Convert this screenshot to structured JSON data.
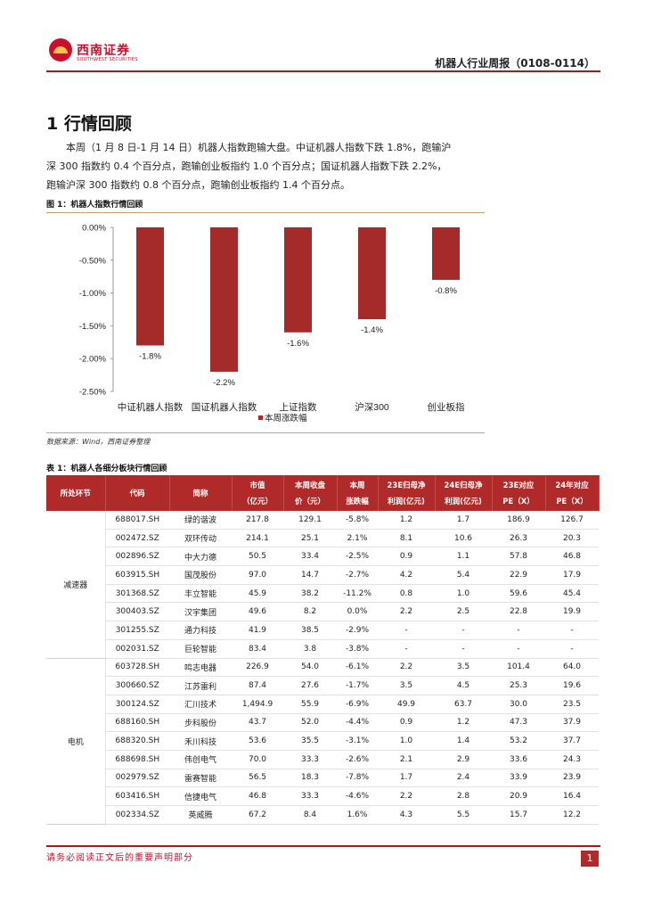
{
  "header": {
    "logo_text": "西南证券",
    "logo_sub": "SOUTHWEST SECURITIES",
    "report_title": "机器人行业周报（0108-0114）"
  },
  "section": {
    "title": "1 行情回顾",
    "paragraph": [
      "　　本周（1 月 8 日-1 月 14 日）机器人指数跑输大盘。中证机器人指数下跌 1.8%，跑输沪",
      "深 300 指数约 0.4 个百分点，跑输创业板指约 1.0 个百分点；国证机器人指数下跌 2.2%，",
      "跑输沪深 300 指数约 0.8 个百分点，跑输创业板指约 1.4 个百分点。"
    ]
  },
  "figure": {
    "title": "图 1：机器人指数行情回顾",
    "source": "数据来源：Wind，西南证券整理"
  },
  "chart_data": {
    "type": "bar",
    "categories": [
      "中证机器人指数",
      "国证机器人指数",
      "上证指数",
      "沪深300",
      "创业板指"
    ],
    "series": [
      {
        "name": "本周涨跌幅",
        "values": [
          -1.8,
          -2.2,
          -1.6,
          -1.4,
          -0.8
        ]
      }
    ],
    "data_labels": [
      "-1.8%",
      "-2.2%",
      "-1.6%",
      "-1.4%",
      "-0.8%"
    ],
    "y_ticks": [
      "0.00%",
      "-0.50%",
      "-1.00%",
      "-1.50%",
      "-2.00%",
      "-2.50%"
    ],
    "ylim": [
      -2.5,
      0
    ],
    "legend_position": "bottom",
    "bar_color": "#a52a2a"
  },
  "table": {
    "title": "表 1：机器人各细分板块行情回顾",
    "headers": [
      [
        "所处环节",
        ""
      ],
      [
        "代码",
        ""
      ],
      [
        "简称",
        ""
      ],
      [
        "市值",
        "（亿元）"
      ],
      [
        "本周收盘",
        "价（元）"
      ],
      [
        "本周",
        "涨跌幅"
      ],
      [
        "23E归母净",
        "利润(亿元)"
      ],
      [
        "24E归母净",
        "利润(亿元)"
      ],
      [
        "23E对应",
        "PE（X）"
      ],
      [
        "24年对应",
        "PE（X）"
      ]
    ],
    "groups": [
      {
        "segment": "减速器",
        "rows": [
          [
            "688017.SH",
            "绿的谐波",
            "217.8",
            "129.1",
            "-5.8%",
            "1.2",
            "1.7",
            "186.9",
            "126.7"
          ],
          [
            "002472.SZ",
            "双环传动",
            "214.1",
            "25.1",
            "2.1%",
            "8.1",
            "10.6",
            "26.3",
            "20.3"
          ],
          [
            "002896.SZ",
            "中大力德",
            "50.5",
            "33.4",
            "-2.5%",
            "0.9",
            "1.1",
            "57.8",
            "46.8"
          ],
          [
            "603915.SH",
            "国茂股份",
            "97.0",
            "14.7",
            "-2.7%",
            "4.2",
            "5.4",
            "22.9",
            "17.9"
          ],
          [
            "301368.SZ",
            "丰立智能",
            "45.9",
            "38.2",
            "-11.2%",
            "0.8",
            "1.0",
            "59.6",
            "45.4"
          ],
          [
            "300403.SZ",
            "汉宇集团",
            "49.6",
            "8.2",
            "0.0%",
            "2.2",
            "2.5",
            "22.8",
            "19.9"
          ],
          [
            "301255.SZ",
            "通力科技",
            "41.9",
            "38.5",
            "-2.9%",
            "-",
            "-",
            "-",
            "-"
          ],
          [
            "002031.SZ",
            "巨轮智能",
            "83.4",
            "3.8",
            "-3.8%",
            "-",
            "-",
            "-",
            "-"
          ]
        ]
      },
      {
        "segment": "电机",
        "rows": [
          [
            "603728.SH",
            "鸣志电器",
            "226.9",
            "54.0",
            "-6.1%",
            "2.2",
            "3.5",
            "101.4",
            "64.0"
          ],
          [
            "300660.SZ",
            "江苏雷利",
            "87.4",
            "27.6",
            "-1.7%",
            "3.5",
            "4.5",
            "25.3",
            "19.6"
          ],
          [
            "300124.SZ",
            "汇川技术",
            "1,494.9",
            "55.9",
            "-6.9%",
            "49.9",
            "63.7",
            "30.0",
            "23.5"
          ],
          [
            "688160.SH",
            "步科股份",
            "43.7",
            "52.0",
            "-4.4%",
            "0.9",
            "1.2",
            "47.3",
            "37.9"
          ],
          [
            "688320.SH",
            "禾川科技",
            "53.6",
            "35.5",
            "-3.1%",
            "1.0",
            "1.4",
            "53.2",
            "37.7"
          ],
          [
            "688698.SH",
            "伟创电气",
            "70.0",
            "33.3",
            "-2.6%",
            "2.1",
            "2.9",
            "33.6",
            "24.3"
          ],
          [
            "002979.SZ",
            "雷赛智能",
            "56.5",
            "18.3",
            "-7.8%",
            "1.7",
            "2.4",
            "33.9",
            "23.9"
          ],
          [
            "603416.SH",
            "信捷电气",
            "46.8",
            "33.3",
            "-4.6%",
            "2.2",
            "2.8",
            "20.9",
            "16.4"
          ],
          [
            "002334.SZ",
            "英威腾",
            "67.2",
            "8.4",
            "1.6%",
            "4.3",
            "5.5",
            "15.7",
            "12.2"
          ]
        ]
      }
    ]
  },
  "footer": {
    "notice": "请务必阅读正文后的重要声明部分",
    "page": "1"
  }
}
